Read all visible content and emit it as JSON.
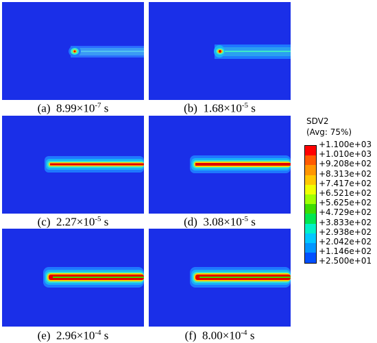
{
  "panels": [
    {
      "prefix": "(a)",
      "value": "8.99",
      "times": "×",
      "base": "10",
      "exp": "-7",
      "unit": "s"
    },
    {
      "prefix": "(b)",
      "value": "1.68",
      "times": "×",
      "base": "10",
      "exp": "-5",
      "unit": "s"
    },
    {
      "prefix": "(c)",
      "value": "2.27",
      "times": "×",
      "base": "10",
      "exp": "-5",
      "unit": "s"
    },
    {
      "prefix": "(d)",
      "value": "3.08",
      "times": "×",
      "base": "10",
      "exp": "-5",
      "unit": "s"
    },
    {
      "prefix": "(e)",
      "value": "2.96",
      "times": "×",
      "base": "10",
      "exp": "-4",
      "unit": "s"
    },
    {
      "prefix": "(f)",
      "value": "8.00",
      "times": "×",
      "base": "10",
      "exp": "-4",
      "unit": "s"
    }
  ],
  "legend": {
    "variable": "SDV2",
    "averaging": "(Avg: 75%)",
    "values": [
      "+1.100e+03",
      "+1.010e+03",
      "+9.208e+02",
      "+8.313e+02",
      "+7.417e+02",
      "+6.521e+02",
      "+5.625e+02",
      "+4.729e+02",
      "+3.833e+02",
      "+2.938e+02",
      "+2.042e+02",
      "+1.146e+02",
      "+2.500e+01"
    ],
    "colors": [
      "#ff0000",
      "#ff5a00",
      "#ff9600",
      "#ffc800",
      "#f0ff00",
      "#a0ff00",
      "#3cdc00",
      "#00e650",
      "#00f0c8",
      "#00c8ff",
      "#0096ff",
      "#0050ff",
      "#0000ff"
    ]
  },
  "colors": {
    "background": "#1a2fe8",
    "halo_outer": "#1e78ff",
    "halo_mid": "#19b4f5",
    "halo_inner": "#3ee8c8",
    "crack_core": "#e00000",
    "crack_edge": "#ffd200"
  }
}
